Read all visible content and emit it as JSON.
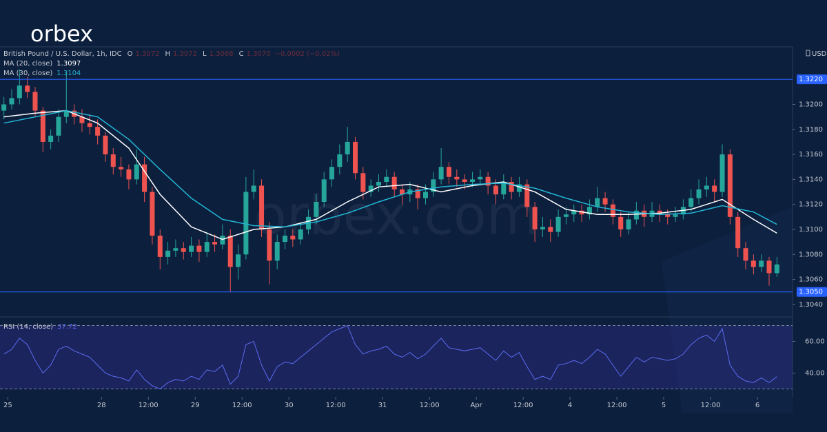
{
  "logo": "orbex",
  "watermark": "orbex.com",
  "chart_data": {
    "type": "candlestick",
    "symbol": "British Pound / U.S. Dollar, 1h, IDC",
    "ohlc_legend": [
      {
        "name": "O",
        "value": {
          "value": 1.3072,
          "label": "1.3072"
        }
      },
      {
        "name": "H",
        "value": {
          "value": 1.3072,
          "label": "1.3072"
        }
      },
      {
        "name": "L",
        "value": {
          "value": 1.3068,
          "label": "1.3068"
        }
      },
      {
        "name": "C",
        "value": {
          "value": 1.307,
          "label": "1.3070"
        }
      }
    ],
    "change_label": "−0.0002 (−0.02%)",
    "currency": "USD",
    "up_color": "#26a69a",
    "down_color": "#ef5350",
    "xlim": [
      -2,
      201
    ],
    "xticks": [
      {
        "value": 0,
        "label": "25"
      },
      {
        "value": 24,
        "label": "28"
      },
      {
        "value": 36,
        "label": "12:00"
      },
      {
        "value": 48,
        "label": "29"
      },
      {
        "value": 60,
        "label": "12:00"
      },
      {
        "value": 72,
        "label": "30"
      },
      {
        "value": 84,
        "label": "12:00"
      },
      {
        "value": 96,
        "label": "31"
      },
      {
        "value": 108,
        "label": "12:00"
      },
      {
        "value": 120,
        "label": "Apr"
      },
      {
        "value": 132,
        "label": "12:00"
      },
      {
        "value": 144,
        "label": "4"
      },
      {
        "value": 156,
        "label": "12:00"
      },
      {
        "value": 168,
        "label": "5"
      },
      {
        "value": 180,
        "label": "12:00"
      },
      {
        "value": 192,
        "label": "6"
      }
    ],
    "ylim": [
      1.303,
      1.3246
    ],
    "yticks": [
      {
        "value": 1.32,
        "label": "1.3200"
      },
      {
        "value": 1.318,
        "label": "1.3180"
      },
      {
        "value": 1.316,
        "label": "1.3160"
      },
      {
        "value": 1.314,
        "label": "1.3140"
      },
      {
        "value": 1.312,
        "label": "1.3120"
      },
      {
        "value": 1.31,
        "label": "1.3100"
      },
      {
        "value": 1.308,
        "label": "1.3080"
      },
      {
        "value": 1.306,
        "label": "1.3060"
      },
      {
        "value": 1.304,
        "label": "1.3040"
      }
    ],
    "hlines": {
      "color": "#2962ff",
      "levels": [
        {
          "value": 1.322,
          "label": "1.3220"
        },
        {
          "value": 1.305,
          "label": "1.3050"
        }
      ]
    },
    "x": [
      -1,
      1,
      3,
      5,
      7,
      9,
      11,
      13,
      15,
      17,
      19,
      21,
      23,
      25,
      27,
      29,
      31,
      33,
      35,
      37,
      39,
      41,
      43,
      45,
      47,
      49,
      51,
      53,
      55,
      57,
      59,
      61,
      63,
      65,
      67,
      69,
      71,
      73,
      75,
      77,
      79,
      81,
      83,
      85,
      87,
      89,
      91,
      93,
      95,
      97,
      99,
      101,
      103,
      105,
      107,
      109,
      111,
      113,
      115,
      117,
      119,
      121,
      123,
      125,
      127,
      129,
      131,
      133,
      135,
      137,
      139,
      141,
      143,
      145,
      147,
      149,
      151,
      153,
      155,
      157,
      159,
      161,
      163,
      165,
      167,
      169,
      171,
      173,
      175,
      177,
      179,
      181,
      183,
      185,
      187,
      189,
      191,
      193,
      195,
      197
    ],
    "candles": [
      [
        1.3195,
        1.3206,
        1.3188,
        1.32
      ],
      [
        1.32,
        1.3212,
        1.3196,
        1.3205
      ],
      [
        1.3205,
        1.3228,
        1.32,
        1.3215
      ],
      [
        1.3215,
        1.3222,
        1.3205,
        1.321
      ],
      [
        1.321,
        1.3214,
        1.319,
        1.3195
      ],
      [
        1.3195,
        1.3198,
        1.3162,
        1.317
      ],
      [
        1.317,
        1.318,
        1.3164,
        1.3175
      ],
      [
        1.3175,
        1.3196,
        1.317,
        1.319
      ],
      [
        1.319,
        1.3226,
        1.3185,
        1.3195
      ],
      [
        1.3195,
        1.32,
        1.3184,
        1.319
      ],
      [
        1.319,
        1.3196,
        1.3178,
        1.3185
      ],
      [
        1.3185,
        1.3192,
        1.3176,
        1.3182
      ],
      [
        1.3182,
        1.3188,
        1.3168,
        1.3175
      ],
      [
        1.3175,
        1.3178,
        1.3154,
        1.316
      ],
      [
        1.316,
        1.3165,
        1.3144,
        1.315
      ],
      [
        1.315,
        1.3158,
        1.3142,
        1.3148
      ],
      [
        1.3148,
        1.3152,
        1.3132,
        1.314
      ],
      [
        1.314,
        1.3164,
        1.3136,
        1.3152
      ],
      [
        1.3152,
        1.3158,
        1.3122,
        1.313
      ],
      [
        1.313,
        1.3134,
        1.3088,
        1.3095
      ],
      [
        1.3095,
        1.31,
        1.3068,
        1.3078
      ],
      [
        1.3078,
        1.309,
        1.3072,
        1.3083
      ],
      [
        1.3083,
        1.3092,
        1.3078,
        1.3085
      ],
      [
        1.3085,
        1.309,
        1.3076,
        1.3082
      ],
      [
        1.3082,
        1.3094,
        1.3078,
        1.3087
      ],
      [
        1.3087,
        1.3092,
        1.3074,
        1.3082
      ],
      [
        1.3082,
        1.3098,
        1.3078,
        1.309
      ],
      [
        1.309,
        1.3096,
        1.3082,
        1.3088
      ],
      [
        1.3088,
        1.3104,
        1.3084,
        1.3095
      ],
      [
        1.3095,
        1.31,
        1.305,
        1.307
      ],
      [
        1.307,
        1.3088,
        1.306,
        1.308
      ],
      [
        1.308,
        1.3142,
        1.3076,
        1.313
      ],
      [
        1.313,
        1.3148,
        1.3124,
        1.3135
      ],
      [
        1.3135,
        1.314,
        1.3094,
        1.31
      ],
      [
        1.31,
        1.3106,
        1.3056,
        1.3075
      ],
      [
        1.3075,
        1.3096,
        1.3068,
        1.309
      ],
      [
        1.309,
        1.31,
        1.3084,
        1.3095
      ],
      [
        1.3095,
        1.31,
        1.3086,
        1.3092
      ],
      [
        1.3092,
        1.3106,
        1.3088,
        1.31
      ],
      [
        1.31,
        1.3116,
        1.3096,
        1.311
      ],
      [
        1.311,
        1.3128,
        1.3104,
        1.3122
      ],
      [
        1.3122,
        1.3146,
        1.3118,
        1.314
      ],
      [
        1.314,
        1.3156,
        1.3134,
        1.315
      ],
      [
        1.315,
        1.3168,
        1.3144,
        1.316
      ],
      [
        1.316,
        1.3182,
        1.3154,
        1.317
      ],
      [
        1.317,
        1.3174,
        1.314,
        1.3145
      ],
      [
        1.3145,
        1.315,
        1.3124,
        1.313
      ],
      [
        1.313,
        1.314,
        1.3126,
        1.3135
      ],
      [
        1.3135,
        1.3144,
        1.313,
        1.3138
      ],
      [
        1.3138,
        1.3148,
        1.3134,
        1.3142
      ],
      [
        1.3142,
        1.3146,
        1.3126,
        1.3132
      ],
      [
        1.3132,
        1.3136,
        1.312,
        1.3128
      ],
      [
        1.3128,
        1.3138,
        1.3122,
        1.3132
      ],
      [
        1.3132,
        1.3136,
        1.3116,
        1.3125
      ],
      [
        1.3125,
        1.3136,
        1.312,
        1.313
      ],
      [
        1.313,
        1.3146,
        1.3126,
        1.314
      ],
      [
        1.314,
        1.3165,
        1.3136,
        1.315
      ],
      [
        1.315,
        1.3154,
        1.3136,
        1.3142
      ],
      [
        1.3142,
        1.3148,
        1.3134,
        1.314
      ],
      [
        1.314,
        1.3144,
        1.3132,
        1.3138
      ],
      [
        1.3138,
        1.3146,
        1.3134,
        1.314
      ],
      [
        1.314,
        1.3148,
        1.3136,
        1.3142
      ],
      [
        1.3142,
        1.3146,
        1.3128,
        1.3135
      ],
      [
        1.3135,
        1.314,
        1.312,
        1.3128
      ],
      [
        1.3128,
        1.3144,
        1.3124,
        1.3138
      ],
      [
        1.3138,
        1.3142,
        1.3124,
        1.313
      ],
      [
        1.313,
        1.3142,
        1.3126,
        1.3136
      ],
      [
        1.3136,
        1.314,
        1.311,
        1.3118
      ],
      [
        1.3118,
        1.3122,
        1.309,
        1.31
      ],
      [
        1.31,
        1.311,
        1.3094,
        1.3102
      ],
      [
        1.3102,
        1.3108,
        1.309,
        1.3098
      ],
      [
        1.3098,
        1.3116,
        1.3094,
        1.311
      ],
      [
        1.311,
        1.3118,
        1.3104,
        1.3112
      ],
      [
        1.3112,
        1.312,
        1.3106,
        1.3115
      ],
      [
        1.3115,
        1.312,
        1.3106,
        1.3112
      ],
      [
        1.3112,
        1.3124,
        1.3108,
        1.3118
      ],
      [
        1.3118,
        1.3134,
        1.3114,
        1.3125
      ],
      [
        1.3125,
        1.313,
        1.3114,
        1.312
      ],
      [
        1.312,
        1.3124,
        1.3104,
        1.311
      ],
      [
        1.311,
        1.3114,
        1.3094,
        1.31
      ],
      [
        1.31,
        1.3114,
        1.3096,
        1.3108
      ],
      [
        1.3108,
        1.3122,
        1.3104,
        1.3115
      ],
      [
        1.3115,
        1.312,
        1.3102,
        1.311
      ],
      [
        1.311,
        1.3122,
        1.3106,
        1.3115
      ],
      [
        1.3115,
        1.312,
        1.3106,
        1.3112
      ],
      [
        1.3112,
        1.3116,
        1.3104,
        1.311
      ],
      [
        1.311,
        1.3118,
        1.3106,
        1.3112
      ],
      [
        1.3112,
        1.3124,
        1.3108,
        1.3118
      ],
      [
        1.3118,
        1.3132,
        1.3114,
        1.3125
      ],
      [
        1.3125,
        1.314,
        1.312,
        1.3132
      ],
      [
        1.3132,
        1.3142,
        1.3126,
        1.3135
      ],
      [
        1.3135,
        1.314,
        1.3122,
        1.313
      ],
      [
        1.313,
        1.3168,
        1.3126,
        1.316
      ],
      [
        1.316,
        1.3164,
        1.3104,
        1.311
      ],
      [
        1.311,
        1.3114,
        1.3078,
        1.3085
      ],
      [
        1.3085,
        1.309,
        1.3068,
        1.3075
      ],
      [
        1.3075,
        1.308,
        1.3064,
        1.307
      ],
      [
        1.307,
        1.308,
        1.3066,
        1.3075
      ],
      [
        1.3075,
        1.3078,
        1.3055,
        1.3065
      ],
      [
        1.3065,
        1.3078,
        1.3062,
        1.3072
      ]
    ],
    "series": [
      {
        "name": "MA (20, close)",
        "color": "#ffffff",
        "x": [
          -1,
          7,
          15,
          23,
          31,
          39,
          47,
          55,
          63,
          71,
          79,
          87,
          95,
          103,
          111,
          119,
          127,
          135,
          143,
          151,
          159,
          167,
          175,
          183,
          191,
          197
        ],
        "values": [
          1.319,
          1.3193,
          1.3195,
          1.3185,
          1.3165,
          1.3128,
          1.3102,
          1.3092,
          1.31,
          1.3102,
          1.3108,
          1.3122,
          1.3134,
          1.3136,
          1.313,
          1.3135,
          1.3138,
          1.313,
          1.3116,
          1.3112,
          1.3112,
          1.3113,
          1.3116,
          1.3124,
          1.3108,
          1.3097
        ]
      },
      {
        "name": "MA (30, close)",
        "color": "#22b5d3",
        "x": [
          -1,
          7,
          15,
          23,
          31,
          39,
          47,
          55,
          63,
          71,
          79,
          87,
          95,
          103,
          111,
          119,
          127,
          135,
          143,
          151,
          159,
          167,
          175,
          183,
          191,
          197
        ],
        "values": [
          1.3185,
          1.319,
          1.3195,
          1.319,
          1.3172,
          1.3148,
          1.3125,
          1.3108,
          1.3103,
          1.3102,
          1.3106,
          1.3113,
          1.3122,
          1.313,
          1.3134,
          1.3136,
          1.3137,
          1.3133,
          1.3125,
          1.3118,
          1.3114,
          1.3112,
          1.3113,
          1.3119,
          1.3114,
          1.3104
        ]
      }
    ],
    "rsi": {
      "name": "RSI (14, close)",
      "color": "#5b6cf0",
      "ylim": [
        25,
        75
      ],
      "band": [
        30,
        70
      ],
      "yticks": [
        {
          "value": 60,
          "label": "60.00"
        },
        {
          "value": 40,
          "label": "40.00"
        }
      ],
      "values": [
        52,
        55,
        62,
        58,
        48,
        40,
        45,
        55,
        57,
        54,
        52,
        50,
        45,
        40,
        38,
        37,
        35,
        42,
        36,
        32,
        30,
        34,
        36,
        35,
        38,
        36,
        42,
        41,
        45,
        33,
        38,
        58,
        60,
        45,
        35,
        44,
        47,
        46,
        50,
        54,
        58,
        62,
        66,
        68,
        70,
        58,
        52,
        54,
        55,
        57,
        52,
        50,
        53,
        49,
        52,
        57,
        62,
        56,
        55,
        54,
        55,
        56,
        52,
        48,
        54,
        50,
        53,
        44,
        36,
        38,
        36,
        45,
        46,
        48,
        46,
        50,
        55,
        52,
        45,
        38,
        44,
        50,
        47,
        50,
        49,
        48,
        49,
        52,
        58,
        62,
        64,
        60,
        68,
        45,
        38,
        35,
        34,
        37,
        34,
        37.72
      ]
    }
  }
}
